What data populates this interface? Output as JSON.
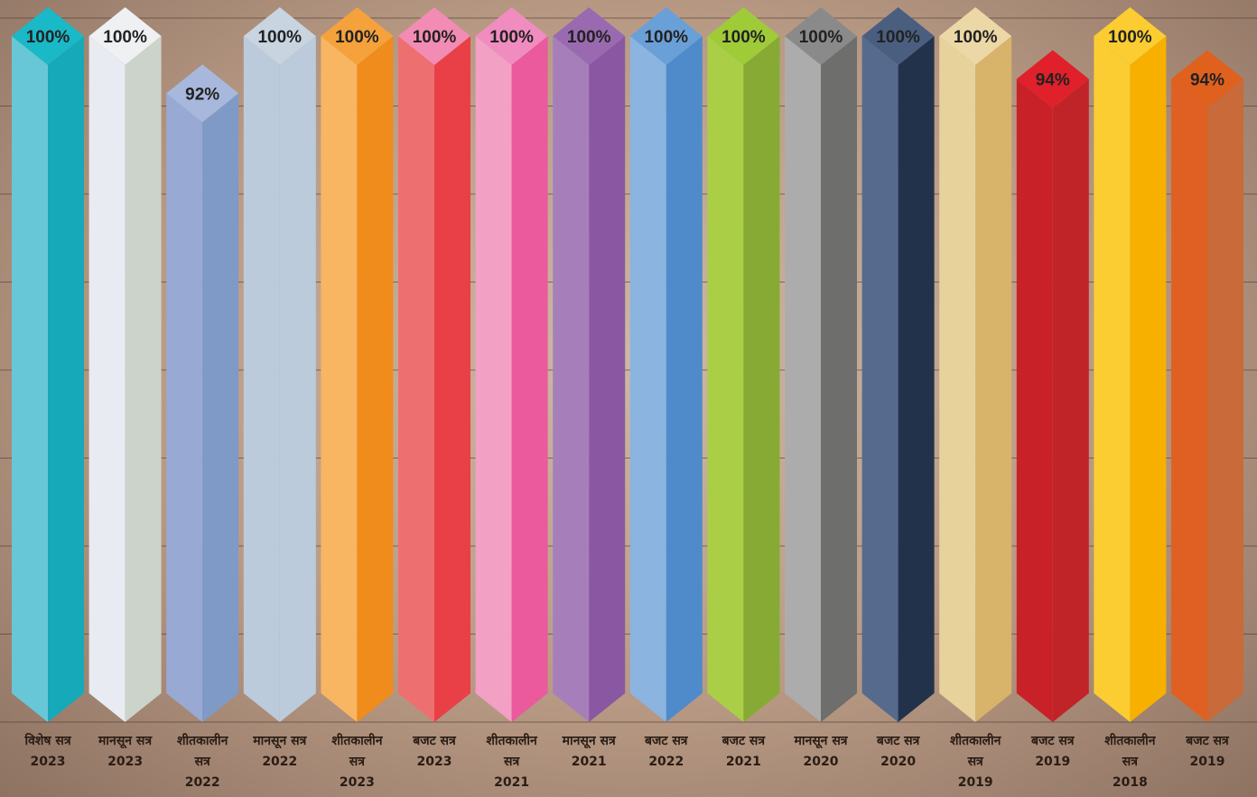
{
  "chart_data": {
    "type": "bar3d",
    "categories": [
      "विशेष सत्र 2023",
      "मानसून सत्र 2023",
      "शीतकालीन सत्र 2022",
      "मानसून सत्र 2022",
      "शीतकालीन सत्र 2023",
      "बजट सत्र 2023",
      "शीतकालीन सत्र 2021",
      "मानसून सत्र 2021",
      "बजट सत्र 2022",
      "बजट सत्र 2021",
      "मानसून सत्र 2020",
      "बजट सत्र 2020",
      "शीतकालीन सत्र 2019",
      "बजट सत्र 2019",
      "शीतकालीन सत्र 2018",
      "बजट सत्र 2019"
    ],
    "values": [
      100,
      100,
      92,
      100,
      100,
      100,
      100,
      100,
      100,
      100,
      100,
      100,
      100,
      94,
      100,
      94
    ],
    "value_labels": [
      "100%",
      "100%",
      "92%",
      "100%",
      "100%",
      "100%",
      "100%",
      "100%",
      "100%",
      "100%",
      "100%",
      "100%",
      "100%",
      "94%",
      "100%",
      "94%"
    ],
    "ylim": [
      0,
      100
    ],
    "colors": [
      [
        "#68c7d6",
        "#15a9b9",
        "#1ab9c8"
      ],
      [
        "#e8ecf2",
        "#ccd3cb",
        "#eef0f2"
      ],
      [
        "#98aad3",
        "#7f9ac6",
        "#a8b8dc"
      ],
      [
        "#bccbdb",
        "#bccbdb",
        "#c8d4e0"
      ],
      [
        "#f8b562",
        "#f08c1c",
        "#f5a23c"
      ],
      [
        "#ee6f70",
        "#e84046",
        "#f28cb4"
      ],
      [
        "#f2a0c4",
        "#ea5a9c",
        "#f08cc0"
      ],
      [
        "#a67fba",
        "#8a58a2",
        "#9a6ab0"
      ],
      [
        "#8bb4e0",
        "#4f8acb",
        "#6aa0d8"
      ],
      [
        "#aacf46",
        "#86aa34",
        "#9fcb38"
      ],
      [
        "#acacac",
        "#6e6e6c",
        "#8a8a8a"
      ],
      [
        "#566a8e",
        "#22324a",
        "#4a5e80"
      ],
      [
        "#e8d29c",
        "#d8b46a",
        "#ecd8a6"
      ],
      [
        "#c82228",
        "#c02428",
        "#e0202a"
      ],
      [
        "#fbcd32",
        "#f8b000",
        "#fbcd32"
      ],
      [
        "#e06024",
        "#c86a3a",
        "#e0601e"
      ]
    ]
  }
}
